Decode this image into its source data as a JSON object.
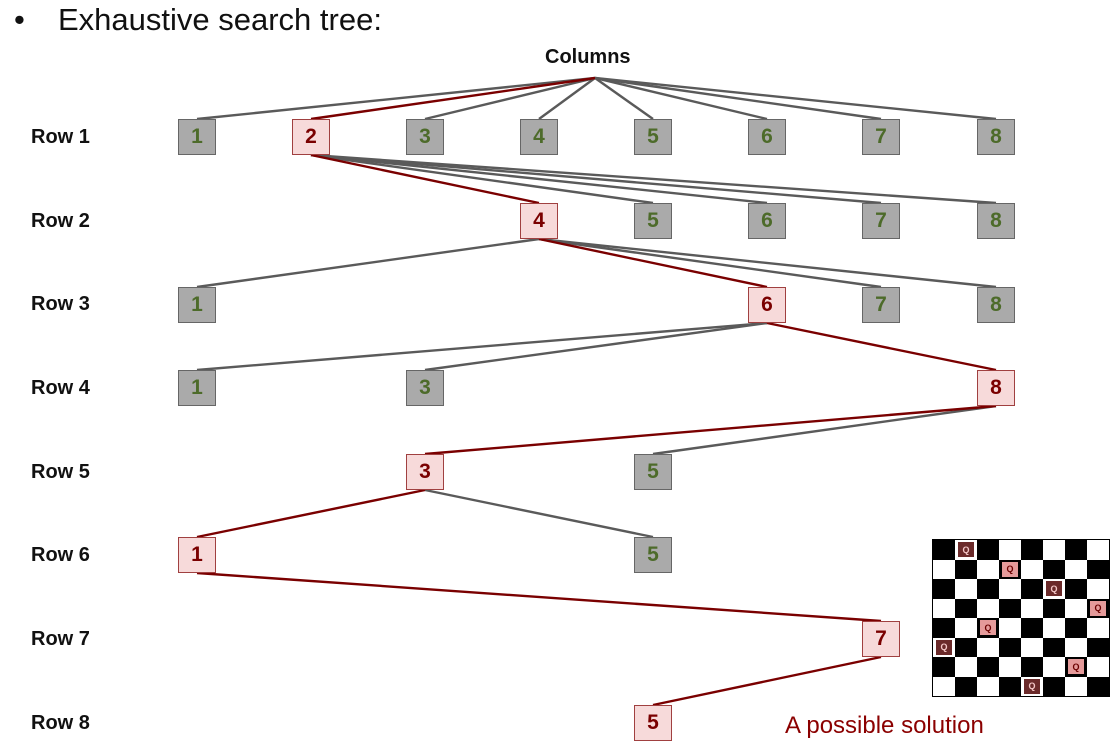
{
  "title": "Exhaustive search tree:",
  "bullet": "•",
  "columns_label": "Columns",
  "row_labels": [
    "Row 1",
    "Row 2",
    "Row 3",
    "Row 4",
    "Row 5",
    "Row 6",
    "Row 7",
    "Row 8"
  ],
  "caption": "A possible solution",
  "colors": {
    "gray_node": "#aaaaaa",
    "gray_text": "#4d6b2a",
    "solution_node": "#f7dada",
    "solution_text": "#7a0000",
    "gray_edge": "#5a5a5a",
    "solution_edge": "#7a0000"
  },
  "tree": [
    {
      "row": 1,
      "nodes": [
        {
          "col": 1,
          "label": "1",
          "sol": false
        },
        {
          "col": 2,
          "label": "2",
          "sol": true
        },
        {
          "col": 3,
          "label": "3",
          "sol": false
        },
        {
          "col": 4,
          "label": "4",
          "sol": false
        },
        {
          "col": 5,
          "label": "5",
          "sol": false
        },
        {
          "col": 6,
          "label": "6",
          "sol": false
        },
        {
          "col": 7,
          "label": "7",
          "sol": false
        },
        {
          "col": 8,
          "label": "8",
          "sol": false
        }
      ]
    },
    {
      "row": 2,
      "nodes": [
        {
          "col": 4,
          "label": "4",
          "sol": true
        },
        {
          "col": 5,
          "label": "5",
          "sol": false
        },
        {
          "col": 6,
          "label": "6",
          "sol": false
        },
        {
          "col": 7,
          "label": "7",
          "sol": false
        },
        {
          "col": 8,
          "label": "8",
          "sol": false
        }
      ]
    },
    {
      "row": 3,
      "nodes": [
        {
          "col": 1,
          "label": "1",
          "sol": false
        },
        {
          "col": 6,
          "label": "6",
          "sol": true
        },
        {
          "col": 7,
          "label": "7",
          "sol": false
        },
        {
          "col": 8,
          "label": "8",
          "sol": false
        }
      ]
    },
    {
      "row": 4,
      "nodes": [
        {
          "col": 1,
          "label": "1",
          "sol": false
        },
        {
          "col": 3,
          "label": "3",
          "sol": false
        },
        {
          "col": 8,
          "label": "8",
          "sol": true
        }
      ]
    },
    {
      "row": 5,
      "nodes": [
        {
          "col": 3,
          "label": "3",
          "sol": true
        },
        {
          "col": 5,
          "label": "5",
          "sol": false
        }
      ]
    },
    {
      "row": 6,
      "nodes": [
        {
          "col": 1,
          "label": "1",
          "sol": true
        },
        {
          "col": 5,
          "label": "5",
          "sol": false
        }
      ]
    },
    {
      "row": 7,
      "nodes": [
        {
          "col": 7,
          "label": "7",
          "sol": true
        }
      ]
    },
    {
      "row": 8,
      "nodes": [
        {
          "col": 5,
          "label": "5",
          "sol": true
        }
      ]
    }
  ],
  "board": {
    "size": 8,
    "queen_label": "Q",
    "queens": [
      {
        "row": 1,
        "col": 2
      },
      {
        "row": 2,
        "col": 4
      },
      {
        "row": 3,
        "col": 6
      },
      {
        "row": 4,
        "col": 8
      },
      {
        "row": 5,
        "col": 3
      },
      {
        "row": 6,
        "col": 1
      },
      {
        "row": 7,
        "col": 7
      },
      {
        "row": 8,
        "col": 5
      }
    ]
  }
}
